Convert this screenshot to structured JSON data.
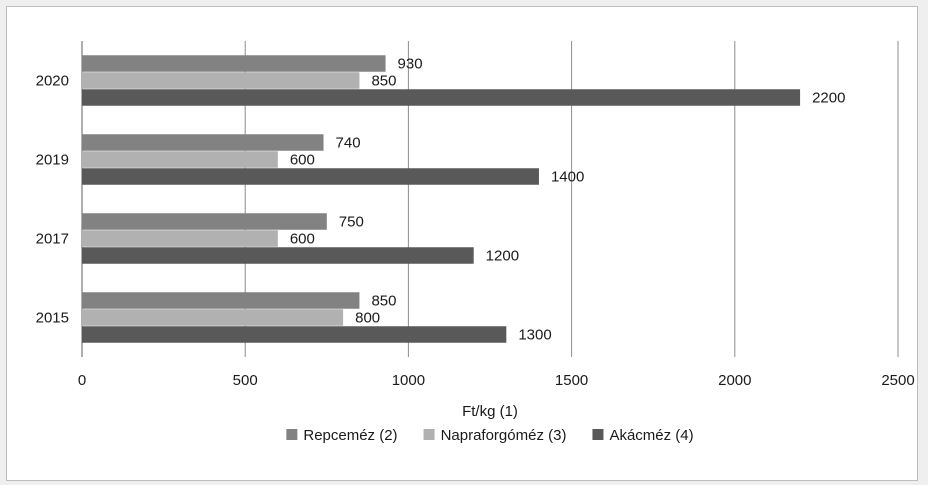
{
  "chart_data": {
    "type": "bar",
    "orientation": "horizontal",
    "categories": [
      "2015",
      "2017",
      "2019",
      "2020"
    ],
    "series": [
      {
        "name": "Repceméz (2)",
        "color": "#828282",
        "values": [
          850,
          750,
          740,
          930
        ]
      },
      {
        "name": "Napraforgóméz (3)",
        "color": "#b1b1b1",
        "values": [
          800,
          600,
          600,
          850
        ]
      },
      {
        "name": "Akácméz (4)",
        "color": "#595959",
        "values": [
          1300,
          1200,
          1400,
          2200
        ]
      }
    ],
    "xlabel": "Ft/kg (1)",
    "ylabel": "",
    "xlim": [
      0,
      2500
    ],
    "xticks": [
      0,
      500,
      1000,
      1500,
      2000,
      2500
    ],
    "grid": true,
    "legend_position": "bottom",
    "data_labels": true
  }
}
